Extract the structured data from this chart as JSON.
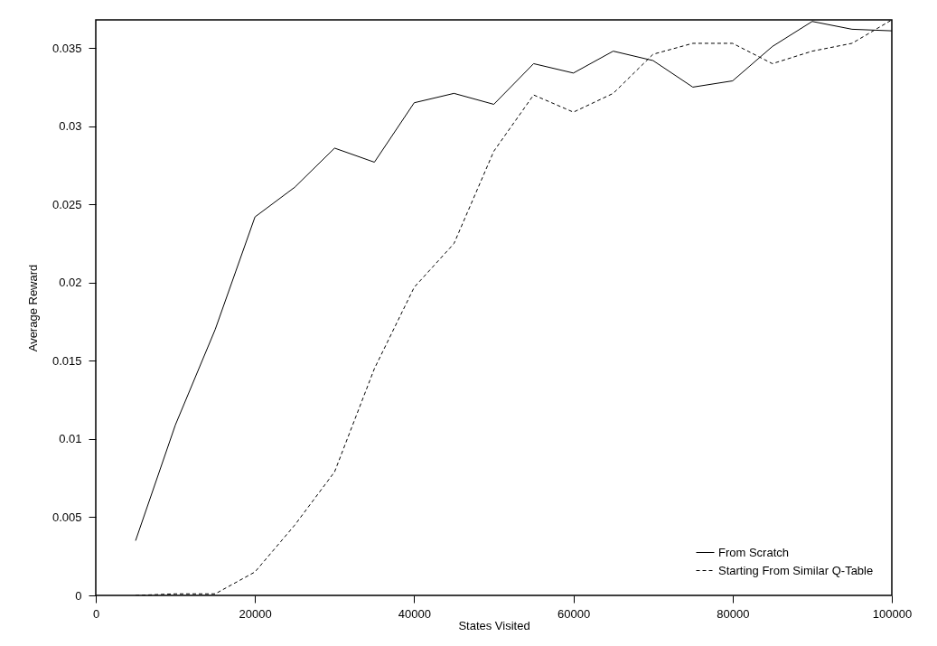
{
  "chart_data": {
    "type": "line",
    "xlabel": "States Visited",
    "ylabel": "Average Reward",
    "x": [
      5000,
      10000,
      15000,
      20000,
      25000,
      30000,
      35000,
      40000,
      45000,
      50000,
      55000,
      60000,
      65000,
      70000,
      75000,
      80000,
      85000,
      90000,
      95000,
      100000
    ],
    "series": [
      {
        "name": "From Scratch",
        "color": "#000000",
        "line_style": "solid",
        "values": [
          0.0035,
          0.0109,
          0.017,
          0.0242,
          0.0261,
          0.0286,
          0.0277,
          0.0315,
          0.0321,
          0.0314,
          0.034,
          0.0334,
          0.0348,
          0.0342,
          0.0325,
          0.0329,
          0.0351,
          0.0367,
          0.0362,
          0.0361
        ]
      },
      {
        "name": "Starting From Similar Q-Table",
        "color": "#000000",
        "line_style": "dashed",
        "values": [
          0,
          0.0001,
          0.0001,
          0.0015,
          0.0045,
          0.0079,
          0.0145,
          0.0197,
          0.0225,
          0.0284,
          0.032,
          0.0309,
          0.0321,
          0.0346,
          0.0353,
          0.0353,
          0.034,
          0.0348,
          0.0353,
          0.0368
        ]
      }
    ],
    "xlim": [
      0,
      100000
    ],
    "xticks": [
      0,
      20000,
      40000,
      60000,
      80000,
      100000
    ],
    "ylim": [
      0,
      0.0368
    ],
    "yticks": [
      0,
      0.005,
      0.01,
      0.015,
      0.02,
      0.025,
      0.03,
      0.035
    ],
    "grid": false,
    "legend": "bottom right",
    "marker": "none"
  }
}
